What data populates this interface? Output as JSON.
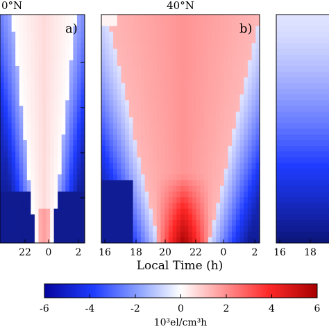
{
  "figure": {
    "xlabel": "Local Time (h)",
    "colorbar_label": "10³el/cm³h"
  },
  "chart_data": {
    "type": "heatmap",
    "panels": [
      {
        "id": "left-cropped",
        "title": "0°N",
        "letter": "a)",
        "x_ticks": [
          "22",
          "0",
          "2"
        ],
        "colormap_points": [
          {
            "lt": 21.0,
            "kind": "negative-to-white trend"
          }
        ]
      },
      {
        "id": "center",
        "title": "40°N",
        "letter": "b)",
        "x_ticks": [
          "16",
          "18",
          "20",
          "22",
          "0",
          "2"
        ]
      },
      {
        "id": "right-cropped",
        "title": "",
        "letter": "",
        "x_ticks": [
          "16",
          "18"
        ]
      }
    ],
    "colorbar": {
      "range": [
        -6,
        6
      ],
      "ticks": [
        "-6",
        "-4",
        "-2",
        "0",
        "2",
        "4",
        "6"
      ],
      "colors": {
        "min": "#0b0b8c",
        "mid": "#ffffff",
        "max": "#b30000"
      }
    }
  }
}
